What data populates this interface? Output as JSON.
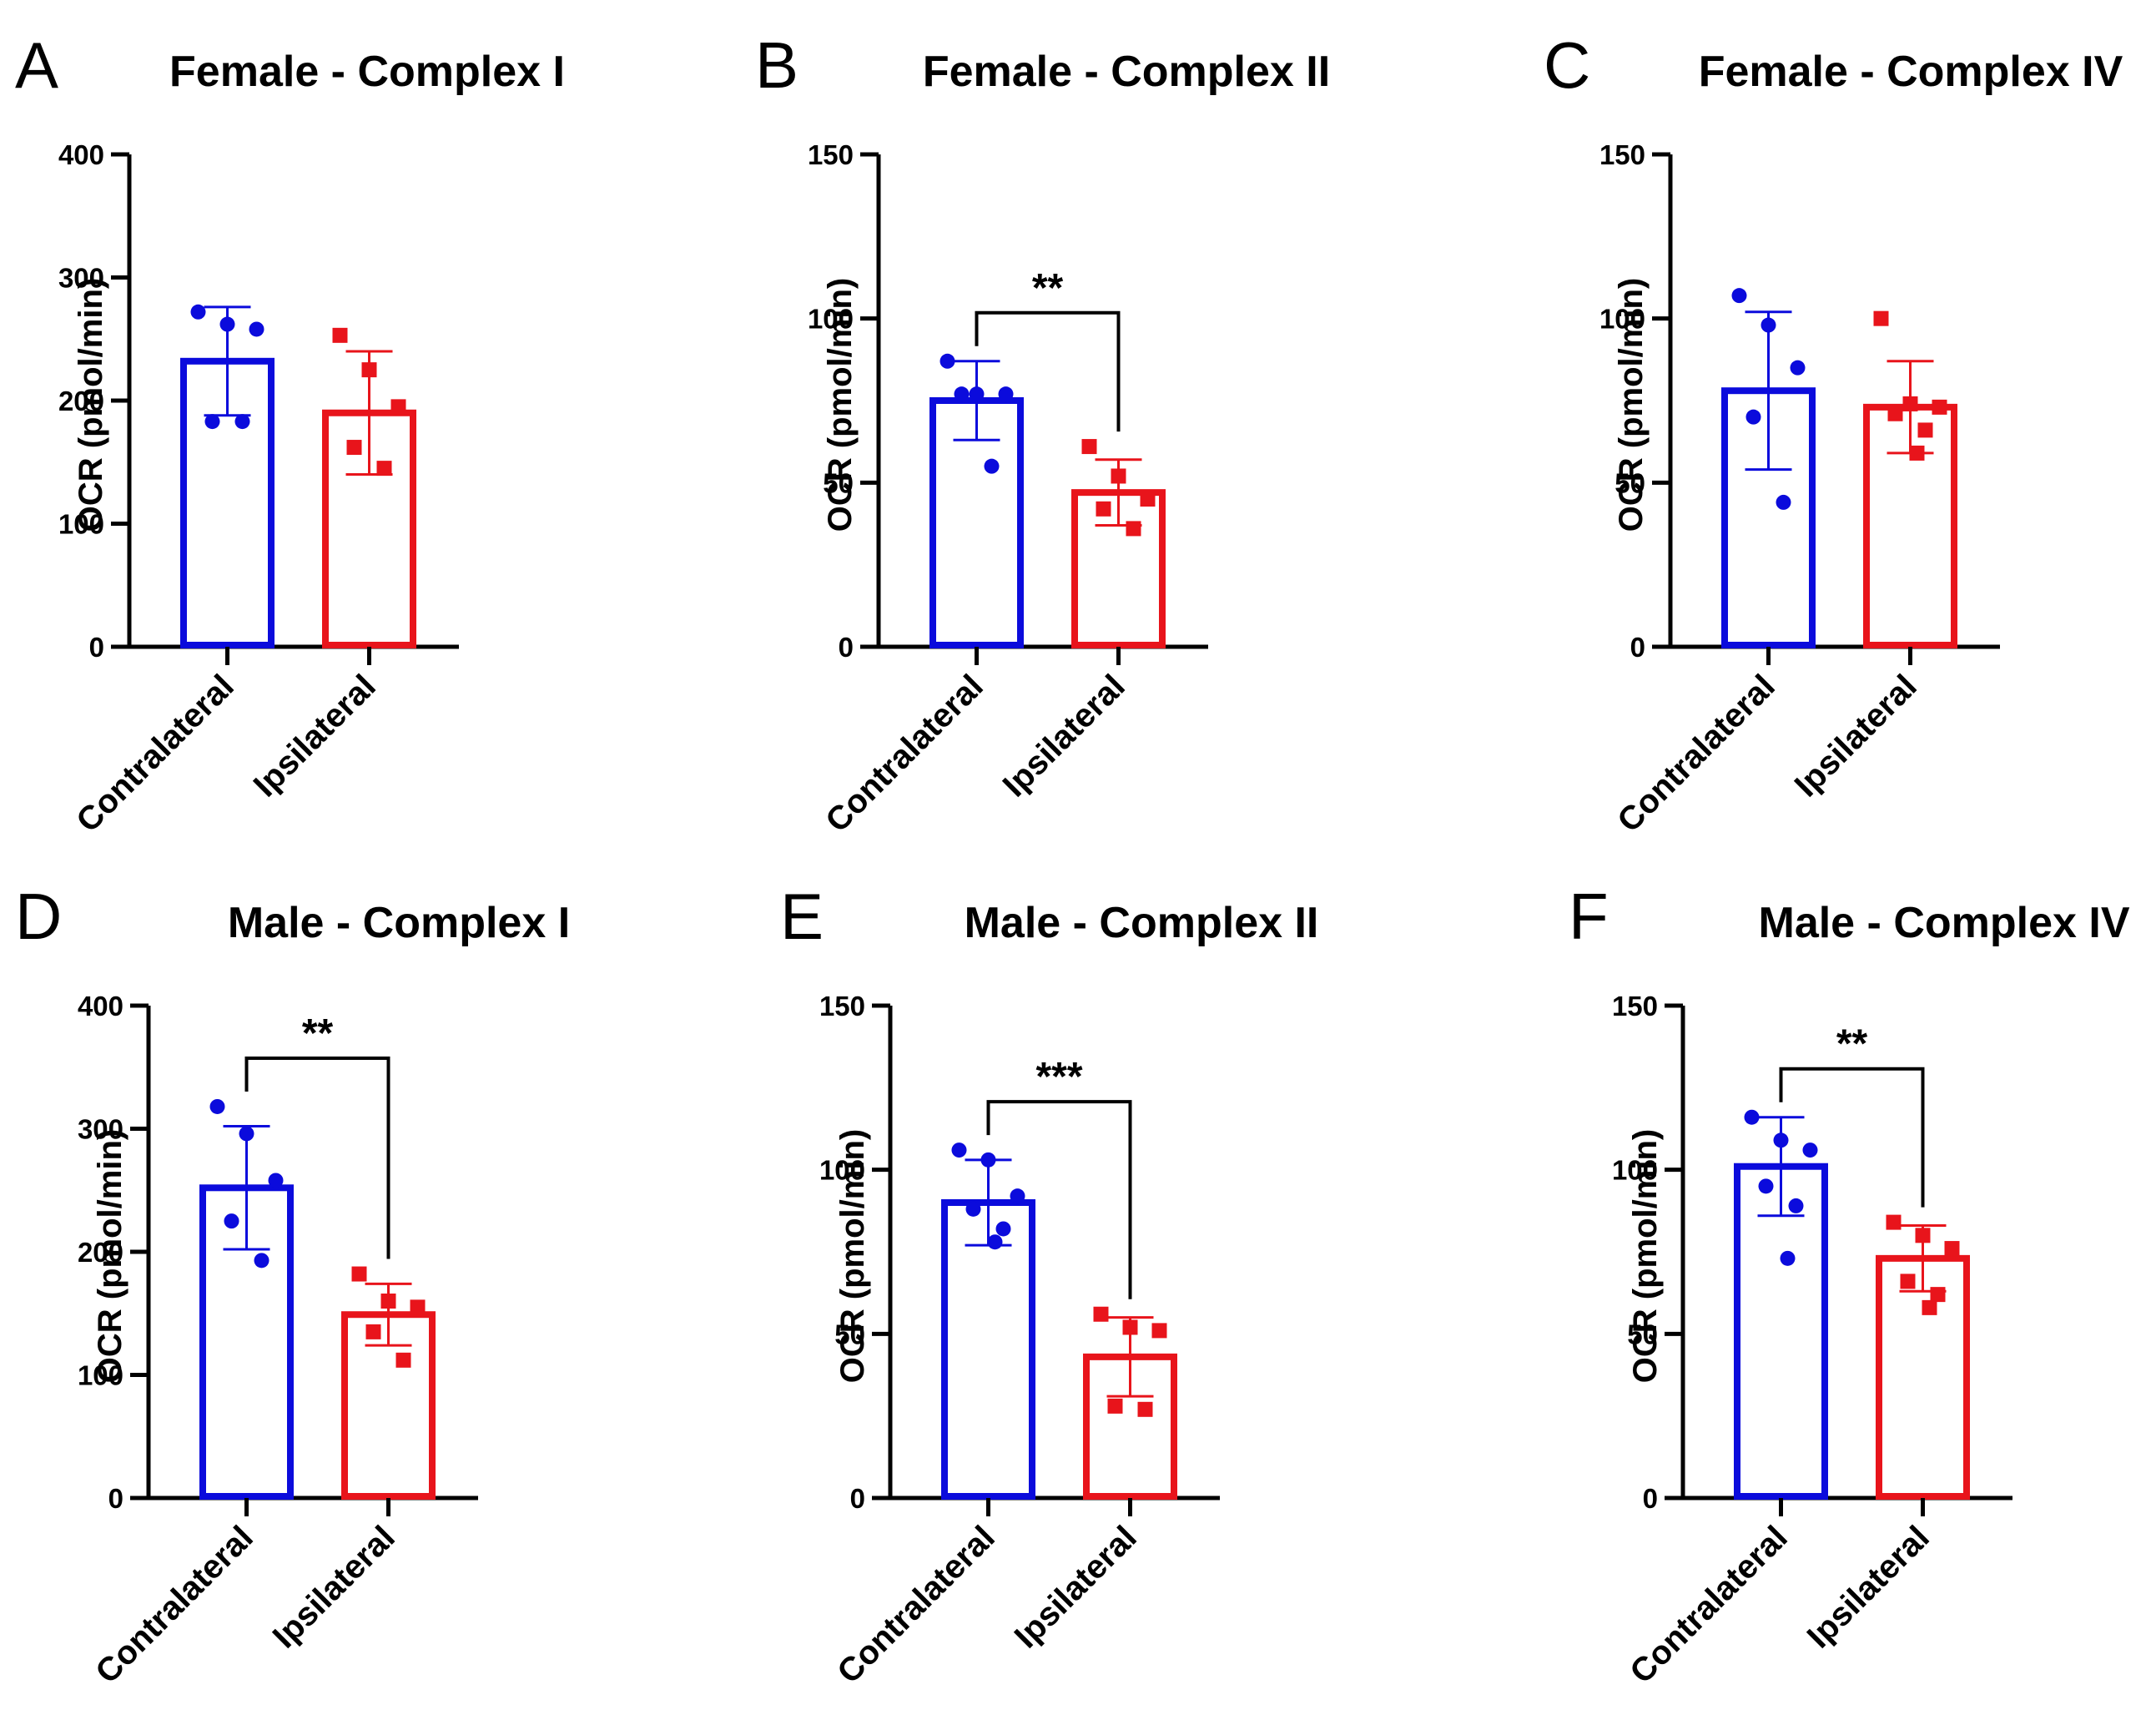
{
  "figure": {
    "colors": {
      "contralateral": "#0b0bdc",
      "ipsilateral": "#e8141b",
      "axis": "#000000"
    }
  },
  "chart_data": [
    {
      "panel": "A",
      "type": "bar",
      "title": "Female - Complex I",
      "ylabel": "OCR (pmol/min)",
      "ylim": [
        0,
        400
      ],
      "yticks": [
        "0",
        "100",
        "200",
        "300",
        "400"
      ],
      "categories": [
        "Contralateral",
        "Ipsilateral"
      ],
      "series": [
        {
          "name": "Contralateral",
          "mean": 232,
          "sd": 44,
          "points": [
            272,
            262,
            258,
            183,
            183
          ]
        },
        {
          "name": "Ipsilateral",
          "mean": 190,
          "sd": 50,
          "points": [
            253,
            225,
            195,
            162,
            145
          ]
        }
      ],
      "significance": null
    },
    {
      "panel": "B",
      "type": "bar",
      "title": "Female - Complex II",
      "ylabel": "OCR (pmol/min)",
      "ylim": [
        0,
        150
      ],
      "yticks": [
        "0",
        "50",
        "100",
        "150"
      ],
      "categories": [
        "Contralateral",
        "Ipsilateral"
      ],
      "series": [
        {
          "name": "Contralateral",
          "mean": 75,
          "sd": 12,
          "points": [
            87,
            77,
            77,
            77,
            55
          ]
        },
        {
          "name": "Ipsilateral",
          "mean": 47,
          "sd": 10,
          "points": [
            61,
            52,
            45,
            42,
            36
          ]
        }
      ],
      "significance": "**"
    },
    {
      "panel": "C",
      "type": "bar",
      "title": "Female - Complex IV",
      "ylabel": "OCR (pmol/min)",
      "ylim": [
        0,
        150
      ],
      "yticks": [
        "0",
        "50",
        "100",
        "150"
      ],
      "categories": [
        "Contralateral",
        "Ipsilateral"
      ],
      "series": [
        {
          "name": "Contralateral",
          "mean": 78,
          "sd": 24,
          "points": [
            107,
            98,
            85,
            70,
            44
          ]
        },
        {
          "name": "Ipsilateral",
          "mean": 73,
          "sd": 14,
          "points": [
            100,
            74,
            73,
            71,
            66,
            59
          ]
        }
      ],
      "significance": null
    },
    {
      "panel": "D",
      "type": "bar",
      "title": "Male - Complex I",
      "ylabel": "OCR (pmol/min)",
      "ylim": [
        0,
        400
      ],
      "yticks": [
        "0",
        "100",
        "200",
        "300",
        "400"
      ],
      "categories": [
        "Contralateral",
        "Ipsilateral"
      ],
      "series": [
        {
          "name": "Contralateral",
          "mean": 252,
          "sd": 50,
          "points": [
            318,
            296,
            258,
            225,
            193
          ]
        },
        {
          "name": "Ipsilateral",
          "mean": 149,
          "sd": 25,
          "points": [
            182,
            160,
            155,
            135,
            112
          ]
        }
      ],
      "significance": "**"
    },
    {
      "panel": "E",
      "type": "bar",
      "title": "Male - Complex II",
      "ylabel": "OCR (pmol/min)",
      "ylim": [
        0,
        150
      ],
      "yticks": [
        "0",
        "50",
        "100",
        "150"
      ],
      "categories": [
        "Contralateral",
        "Ipsilateral"
      ],
      "series": [
        {
          "name": "Contralateral",
          "mean": 90,
          "sd": 13,
          "points": [
            106,
            103,
            92,
            88,
            82,
            78
          ]
        },
        {
          "name": "Ipsilateral",
          "mean": 43,
          "sd": 12,
          "points": [
            56,
            52,
            51,
            28,
            27
          ]
        }
      ],
      "significance": "***"
    },
    {
      "panel": "F",
      "type": "bar",
      "title": "Male - Complex IV",
      "ylabel": "OCR (pmol/min)",
      "ylim": [
        0,
        150
      ],
      "yticks": [
        "0",
        "50",
        "100",
        "150"
      ],
      "categories": [
        "Contralateral",
        "Ipsilateral"
      ],
      "series": [
        {
          "name": "Contralateral",
          "mean": 101,
          "sd": 15,
          "points": [
            116,
            109,
            106,
            95,
            89,
            73
          ]
        },
        {
          "name": "Ipsilateral",
          "mean": 73,
          "sd": 10,
          "points": [
            84,
            80,
            76,
            66,
            62,
            58
          ]
        }
      ],
      "significance": "**"
    }
  ]
}
